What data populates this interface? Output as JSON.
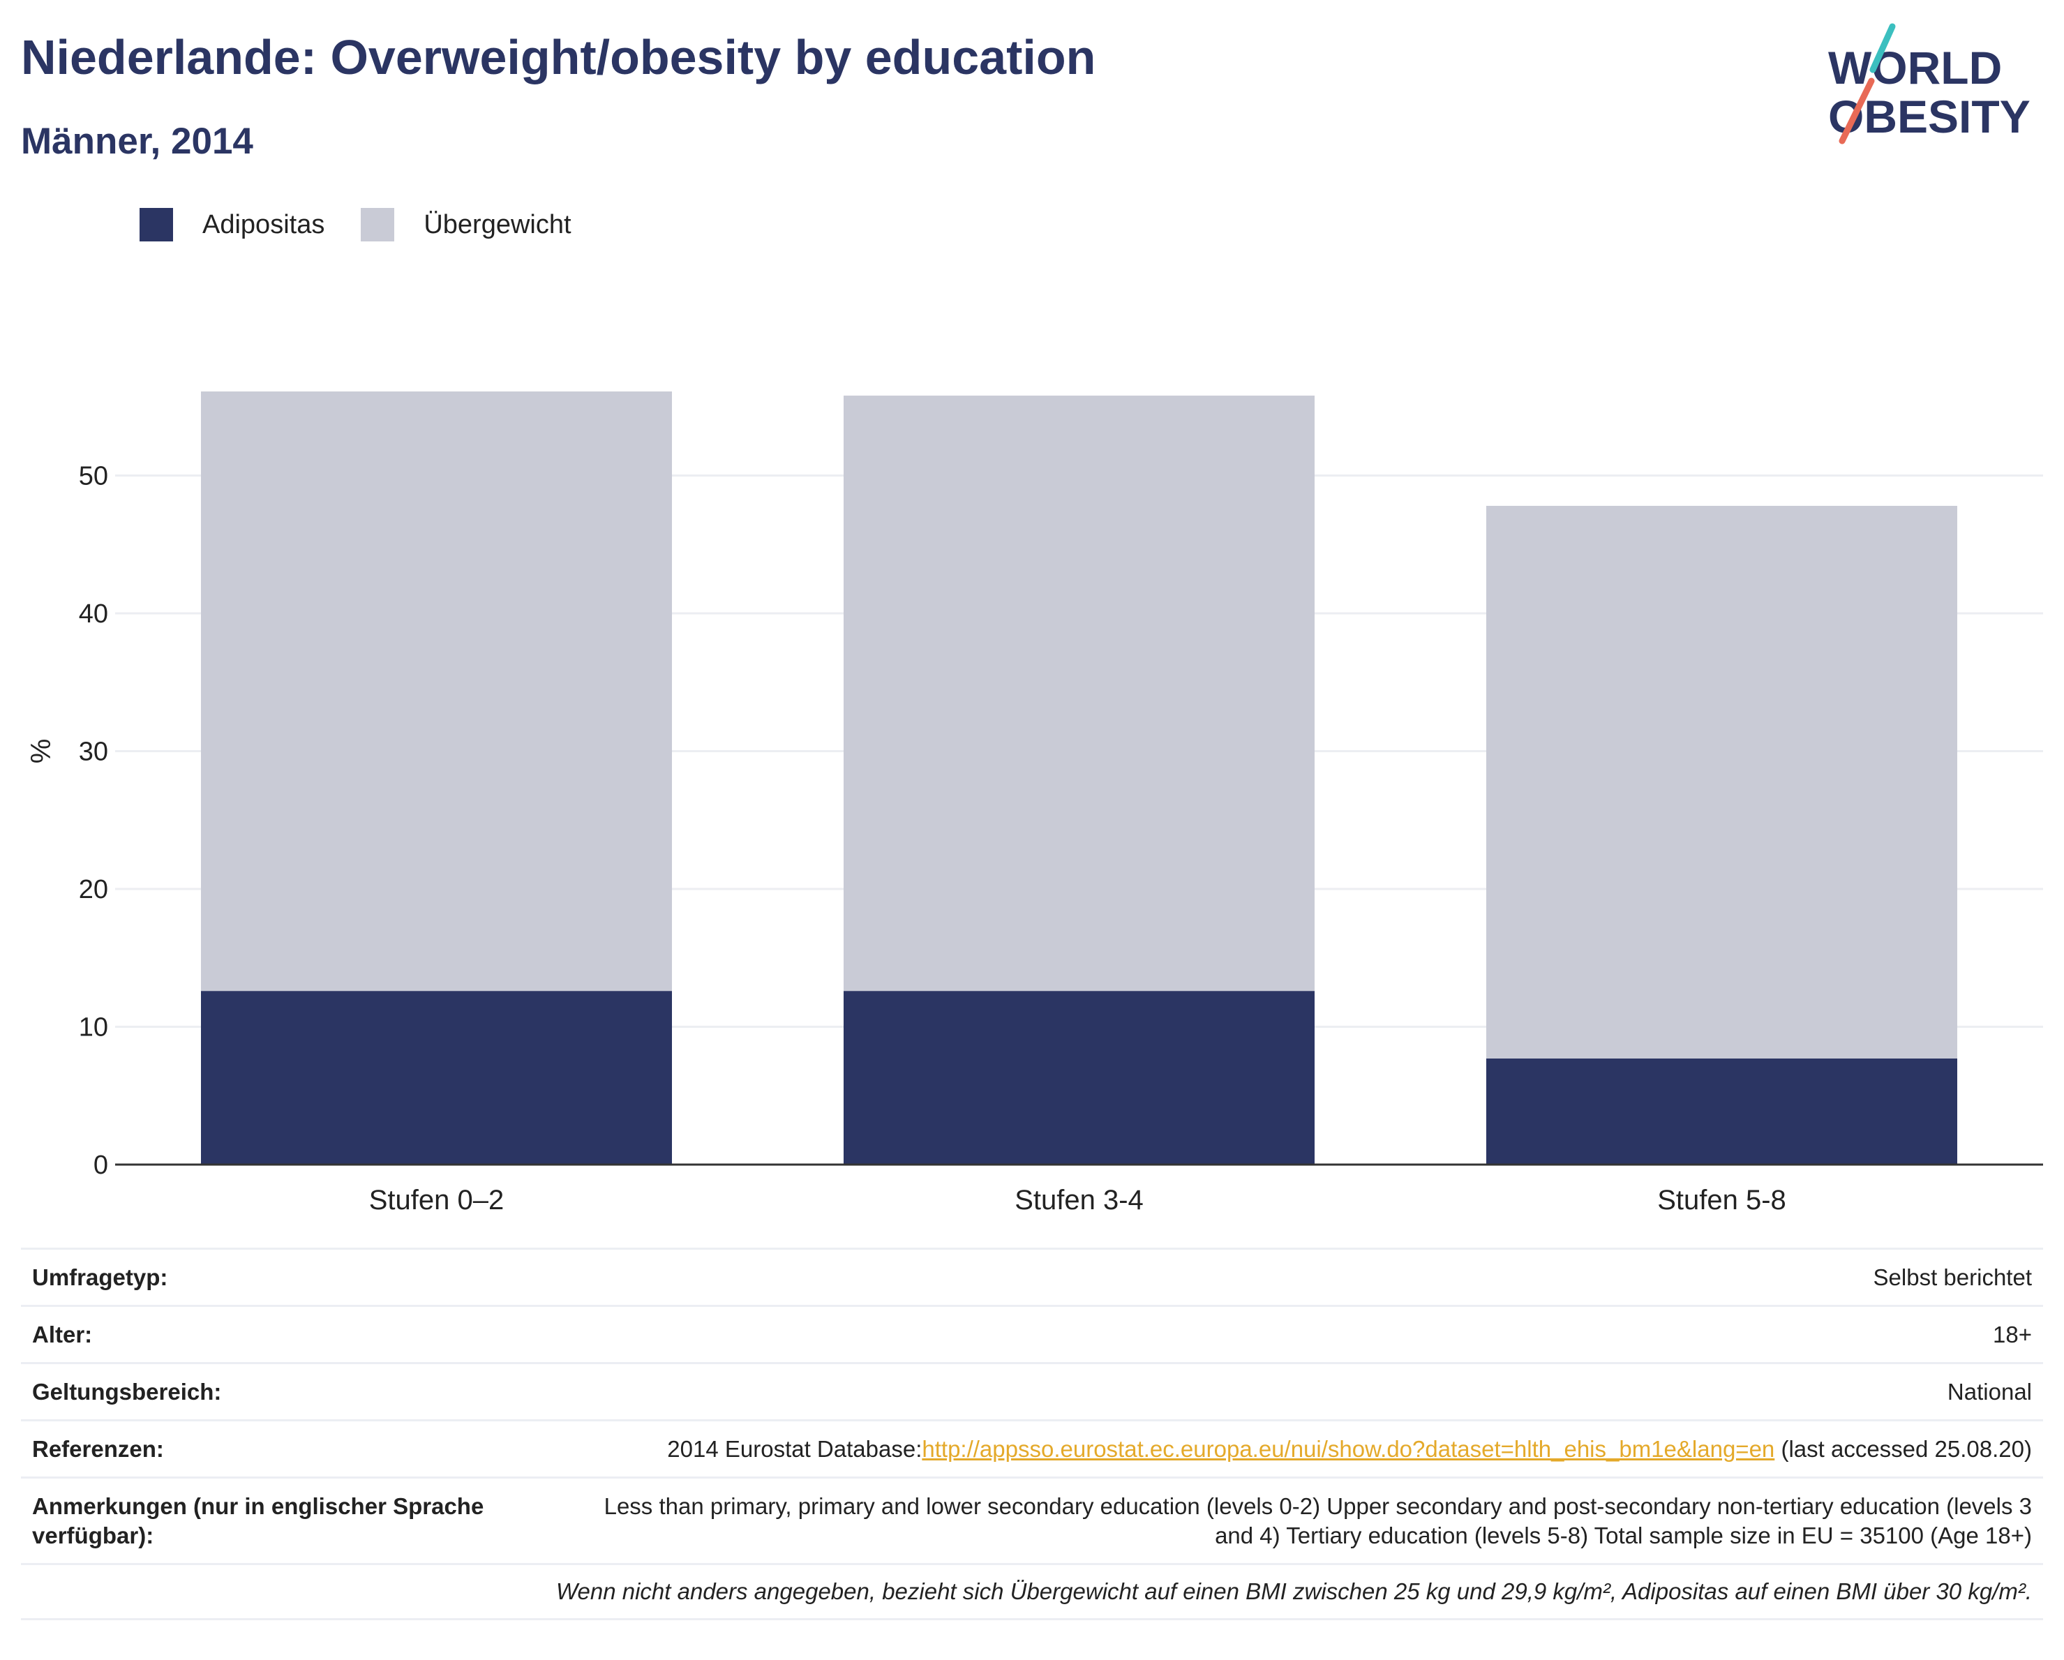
{
  "header": {
    "title": "Niederlande: Overweight/obesity by education",
    "subtitle": "Männer, 2014"
  },
  "logo": {
    "line1": "WORLD",
    "line2": "OBESITY",
    "colors": {
      "text": "#2b3563",
      "slash_top": "#3bbfbf",
      "slash_bottom": "#e86a56"
    }
  },
  "colors": {
    "obesity": "#2b3563",
    "overweight": "#c9cbd6",
    "grid": "#eceef2",
    "axis": "#333333"
  },
  "legend": {
    "items": [
      {
        "label": "Adipositas",
        "color": "#2b3563"
      },
      {
        "label": "Übergewicht",
        "color": "#c9cbd6"
      }
    ]
  },
  "chart_data": {
    "type": "bar",
    "stacked": true,
    "categories": [
      "Stufen 0–2",
      "Stufen 3-4",
      "Stufen 5-8"
    ],
    "series": [
      {
        "name": "Adipositas",
        "values": [
          12.6,
          12.6,
          7.7
        ]
      },
      {
        "name": "Übergewicht",
        "values": [
          43.5,
          43.2,
          40.1
        ]
      }
    ],
    "totals": [
      56.1,
      55.8,
      47.8
    ],
    "ylabel": "%",
    "ylim": [
      0,
      60
    ],
    "yticks": [
      0,
      10,
      20,
      30,
      40,
      50
    ],
    "grid": true,
    "legend_position": "top-left"
  },
  "info": {
    "survey_type": {
      "label": "Umfragetyp:",
      "value": "Selbst berichtet"
    },
    "age": {
      "label": "Alter:",
      "value": "18+"
    },
    "scope": {
      "label": "Geltungsbereich:",
      "value": "National"
    },
    "references": {
      "label": "Referenzen:",
      "prefix": "2014 Eurostat Database:",
      "link": "http://appsso.eurostat.ec.europa.eu/nui/show.do?dataset=hlth_ehis_bm1e&lang=en",
      "suffix": " (last accessed 25.08.20)"
    },
    "notes": {
      "label": "Anmerkungen (nur in englischer Sprache verfügbar):",
      "value": "Less than primary, primary and lower secondary education (levels 0-2) Upper secondary and post-secondary non-tertiary education (levels 3 and 4) Tertiary education (levels 5-8) Total sample size in EU = 35100 (Age 18+)"
    },
    "footnote": "Wenn nicht anders angegeben, bezieht sich Übergewicht auf einen BMI zwischen 25 kg und 29,9 kg/m², Adipositas auf einen BMI über 30 kg/m²."
  }
}
